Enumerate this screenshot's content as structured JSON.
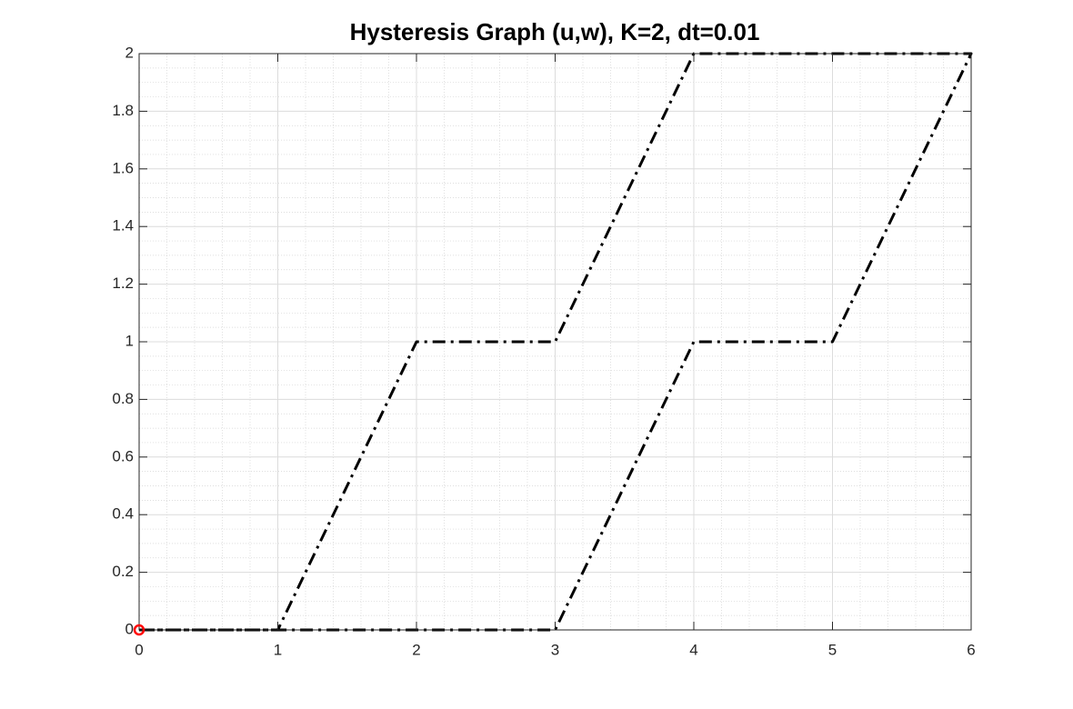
{
  "chart_data": {
    "type": "line",
    "title": "Hysteresis Graph (u,w), K=2, dt=0.01",
    "xlim": [
      0,
      6
    ],
    "xticks": [
      0,
      1,
      2,
      3,
      4,
      5,
      6
    ],
    "ylim": [
      0,
      2
    ],
    "yticks": [
      0,
      0.2,
      0.4,
      0.6,
      0.8,
      1,
      1.2,
      1.4,
      1.6,
      1.8,
      2
    ],
    "grid": true,
    "minor_grid": true,
    "series": [
      {
        "color": "#000000",
        "linestyle": "-.",
        "x": [
          0,
          1,
          2,
          3,
          4,
          6,
          5,
          4,
          3,
          0
        ],
        "values": [
          0,
          0,
          1,
          1,
          2,
          2,
          1,
          1,
          0,
          0
        ]
      },
      {
        "color": "#ff0000",
        "marker": "o",
        "linestyle": "none",
        "x": [
          0
        ],
        "values": [
          0
        ]
      }
    ]
  }
}
